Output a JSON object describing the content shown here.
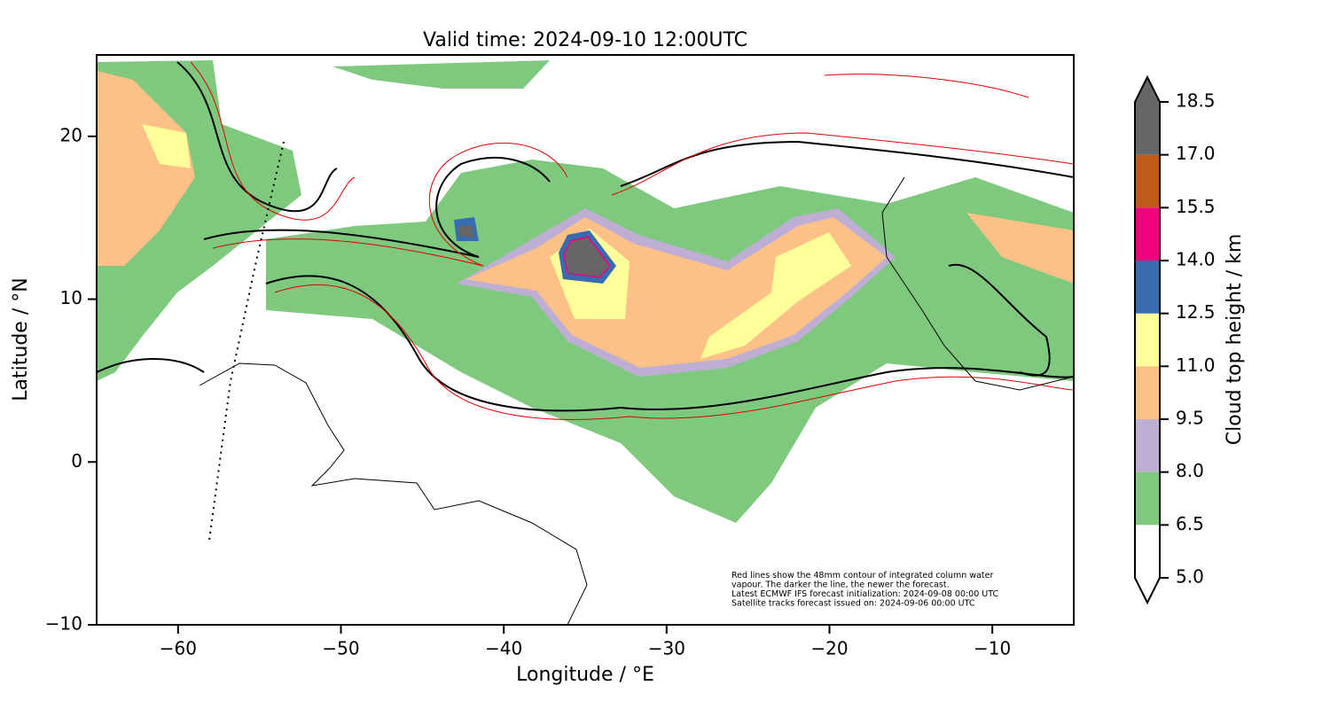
{
  "title": "Valid time: 2024-09-10 12:00UTC",
  "x_axis": {
    "label": "Longitude / °E",
    "lim": [
      -65,
      -5
    ],
    "ticks": [
      {
        "value": -60,
        "label": "−60"
      },
      {
        "value": -50,
        "label": "−50"
      },
      {
        "value": -40,
        "label": "−40"
      },
      {
        "value": -30,
        "label": "−30"
      },
      {
        "value": -20,
        "label": "−20"
      },
      {
        "value": -10,
        "label": "−10"
      }
    ]
  },
  "y_axis": {
    "label": "Latitude / °N",
    "lim": [
      -10,
      25
    ],
    "ticks": [
      {
        "value": -10,
        "label": "−10"
      },
      0,
      10,
      20
    ]
  },
  "colorbar": {
    "label": "Cloud top height / km",
    "levels": [
      5,
      6.5,
      8,
      9.5,
      11,
      12.5,
      14,
      15.5,
      17,
      18.5
    ],
    "level_labels": [
      "5.0",
      "6.5",
      "8.0",
      "9.5",
      "11.0",
      "12.5",
      "14.0",
      "15.5",
      "17.0",
      "18.5"
    ],
    "colors": [
      "#ffffff",
      "#7fc97f",
      "#beaed4",
      "#fdc086",
      "#ffff99",
      "#386cb0",
      "#f0027f",
      "#bf5b17",
      "#666666"
    ]
  },
  "notes": [
    "Red lines show the 48mm contour of integrated column water",
    "vapour. The darker the line, the newer the forecast.",
    "Latest ECMWF IFS forecast initialization: 2024-09-08 00:00 UTC",
    "Satellite tracks forecast issued on: 2024-09-06 00:00 UTC"
  ]
}
